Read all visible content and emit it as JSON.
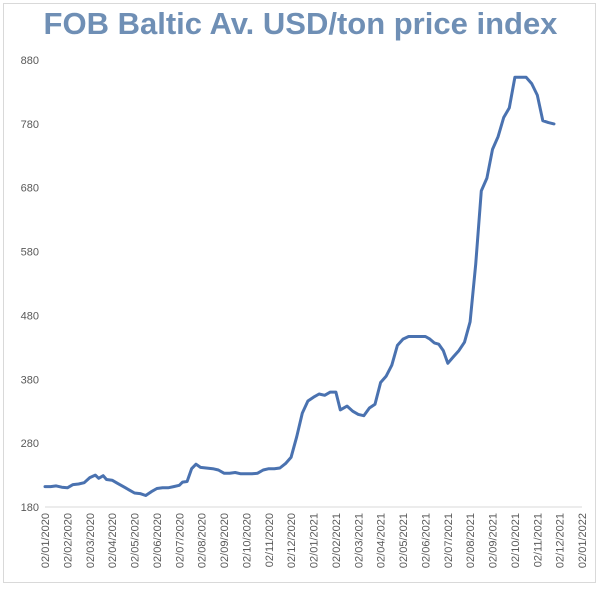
{
  "chart_data": {
    "type": "line",
    "title": "FOB Baltic Av. USD/ton price index",
    "xlabel": "",
    "ylabel": "",
    "ylim": [
      180,
      880
    ],
    "yticks": [
      180,
      280,
      380,
      480,
      580,
      680,
      780,
      880
    ],
    "xticks": [
      "02/01/2020",
      "02/02/2020",
      "02/03/2020",
      "02/04/2020",
      "02/05/2020",
      "02/06/2020",
      "02/07/2020",
      "02/08/2020",
      "02/09/2020",
      "02/10/2020",
      "02/11/2020",
      "02/12/2020",
      "02/01/2021",
      "02/02/2021",
      "02/03/2021",
      "02/04/2021",
      "02/05/2021",
      "02/06/2021",
      "02/07/2021",
      "02/08/2021",
      "02/09/2021",
      "02/10/2021",
      "02/11/2021",
      "02/12/2021",
      "02/01/2022"
    ],
    "grid": false,
    "legend": "none",
    "line_color": "#4a72b0",
    "series": [
      {
        "points": [
          [
            0,
            212
          ],
          [
            0.25,
            212
          ],
          [
            0.5,
            213
          ],
          [
            0.75,
            211
          ],
          [
            1,
            210
          ],
          [
            1.25,
            215
          ],
          [
            1.5,
            216
          ],
          [
            1.75,
            218
          ],
          [
            2,
            226
          ],
          [
            2.25,
            230
          ],
          [
            2.4,
            225
          ],
          [
            2.6,
            229
          ],
          [
            2.75,
            223
          ],
          [
            3,
            222
          ],
          [
            3.25,
            217
          ],
          [
            3.5,
            212
          ],
          [
            3.75,
            207
          ],
          [
            4,
            202
          ],
          [
            4.25,
            201
          ],
          [
            4.5,
            198
          ],
          [
            4.75,
            204
          ],
          [
            5,
            209
          ],
          [
            5.25,
            210
          ],
          [
            5.5,
            210
          ],
          [
            5.75,
            212
          ],
          [
            6,
            214
          ],
          [
            6.15,
            219
          ],
          [
            6.35,
            220
          ],
          [
            6.55,
            240
          ],
          [
            6.75,
            247
          ],
          [
            6.95,
            242
          ],
          [
            7.2,
            241
          ],
          [
            7.5,
            240
          ],
          [
            7.75,
            238
          ],
          [
            8,
            233
          ],
          [
            8.25,
            233
          ],
          [
            8.5,
            234
          ],
          [
            8.75,
            232
          ],
          [
            9,
            232
          ],
          [
            9.25,
            232
          ],
          [
            9.5,
            233
          ],
          [
            9.75,
            238
          ],
          [
            10,
            240
          ],
          [
            10.25,
            240
          ],
          [
            10.5,
            241
          ],
          [
            10.75,
            248
          ],
          [
            11,
            258
          ],
          [
            11.25,
            290
          ],
          [
            11.5,
            327
          ],
          [
            11.75,
            346
          ],
          [
            12,
            352
          ],
          [
            12.25,
            357
          ],
          [
            12.5,
            355
          ],
          [
            12.75,
            360
          ],
          [
            13,
            360
          ],
          [
            13.2,
            332
          ],
          [
            13.5,
            338
          ],
          [
            13.75,
            330
          ],
          [
            14,
            325
          ],
          [
            14.25,
            323
          ],
          [
            14.5,
            335
          ],
          [
            14.75,
            341
          ],
          [
            15,
            375
          ],
          [
            15.25,
            385
          ],
          [
            15.5,
            402
          ],
          [
            15.75,
            433
          ],
          [
            16,
            443
          ],
          [
            16.25,
            447
          ],
          [
            16.5,
            447
          ],
          [
            16.75,
            447
          ],
          [
            17,
            447
          ],
          [
            17.2,
            443
          ],
          [
            17.4,
            437
          ],
          [
            17.6,
            435
          ],
          [
            17.8,
            425
          ],
          [
            18,
            405
          ],
          [
            18.25,
            415
          ],
          [
            18.5,
            425
          ],
          [
            18.75,
            438
          ],
          [
            19,
            470
          ],
          [
            19.25,
            560
          ],
          [
            19.5,
            675
          ],
          [
            19.75,
            695
          ],
          [
            20,
            740
          ],
          [
            20.25,
            760
          ],
          [
            20.5,
            790
          ],
          [
            20.75,
            805
          ],
          [
            21,
            853
          ],
          [
            21.25,
            853
          ],
          [
            21.5,
            853
          ],
          [
            21.75,
            843
          ],
          [
            22,
            825
          ],
          [
            22.25,
            785
          ],
          [
            22.5,
            782
          ],
          [
            22.75,
            780
          ]
        ]
      }
    ]
  }
}
